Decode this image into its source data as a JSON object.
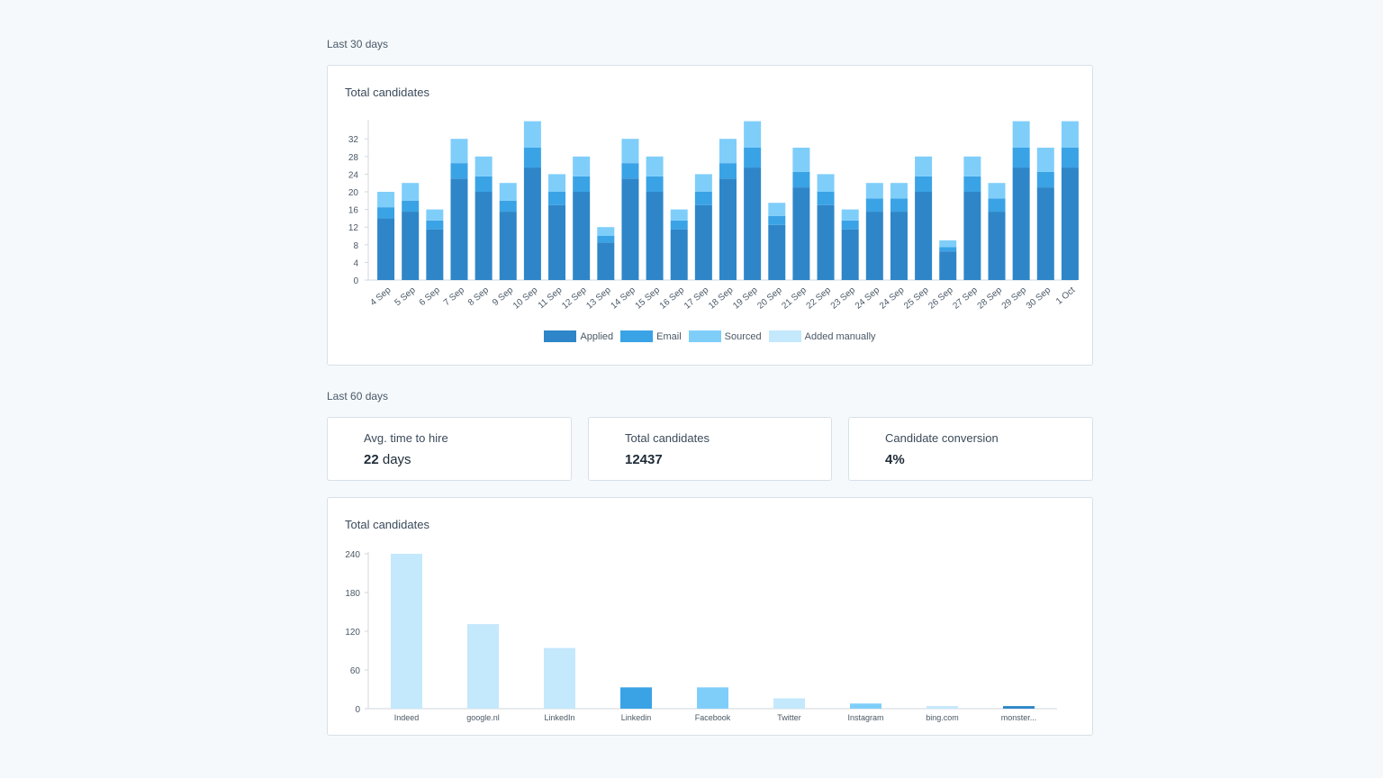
{
  "sections": {
    "last30": "Last 30 days",
    "last60": "Last 60 days"
  },
  "stats": [
    {
      "label": "Avg. time to hire",
      "value": "22",
      "unit": " days"
    },
    {
      "label": "Total candidates",
      "value": "12437",
      "unit": ""
    },
    {
      "label": "Candidate conversion",
      "value": "4%",
      "unit": ""
    }
  ],
  "colors": {
    "applied": "#2e86c8",
    "email": "#3aa3e6",
    "sourced": "#7fcefa",
    "added_manually": "#c4e8fc"
  },
  "chart_data": [
    {
      "type": "bar",
      "stacked": true,
      "title": "Total candidates",
      "categories": [
        "4 Sep",
        "5 Sep",
        "6 Sep",
        "7 Sep",
        "8 Sep",
        "9 Sep",
        "10 Sep",
        "11 Sep",
        "12 Sep",
        "13 Sep",
        "14 Sep",
        "15 Sep",
        "16 Sep",
        "17 Sep",
        "18 Sep",
        "19 Sep",
        "20 Sep",
        "21 Sep",
        "22 Sep",
        "23 Sep",
        "24 Sep",
        "24 Sep",
        "25 Sep",
        "26 Sep",
        "27 Sep",
        "28 Sep",
        "29 Sep",
        "30 Sep",
        "1 Oct"
      ],
      "series": [
        {
          "name": "Applied",
          "values": [
            14,
            15.5,
            11.5,
            23,
            20,
            15.5,
            25.5,
            17,
            20,
            8.5,
            23,
            20,
            11.5,
            17,
            23,
            25.5,
            12.5,
            21,
            17,
            11.5,
            15.5,
            15.5,
            20,
            6.5,
            20,
            15.5,
            25.5,
            21,
            25.5
          ]
        },
        {
          "name": "Email",
          "values": [
            2.5,
            2.5,
            2,
            3.5,
            3.5,
            2.5,
            4.5,
            3,
            3.5,
            1.5,
            3.5,
            3.5,
            2,
            3,
            3.5,
            4.5,
            2,
            3.5,
            3,
            2,
            3,
            3,
            3.5,
            1,
            3.5,
            3,
            4.5,
            3.5,
            4.5
          ]
        },
        {
          "name": "Sourced",
          "values": [
            3.5,
            4,
            2.5,
            5.5,
            4.5,
            4,
            6,
            4,
            4.5,
            2,
            5.5,
            4.5,
            2.5,
            4,
            5.5,
            6,
            3,
            5.5,
            4,
            2.5,
            3.5,
            3.5,
            4.5,
            1.5,
            4.5,
            3.5,
            6,
            5.5,
            6
          ]
        },
        {
          "name": "Added manually",
          "values": [
            0,
            0,
            0,
            0,
            0,
            0,
            0,
            0,
            0,
            0,
            0,
            0,
            0,
            0,
            0,
            0,
            0,
            0,
            0,
            0,
            0,
            0,
            0,
            0,
            0,
            0,
            0,
            0,
            0
          ]
        }
      ],
      "yticks": [
        0,
        4,
        8,
        12,
        16,
        20,
        24,
        28,
        32
      ],
      "ylim": [
        0,
        36
      ],
      "legend": "bottom"
    },
    {
      "type": "bar",
      "title": "Total candidates",
      "categories": [
        "Indeed",
        "google.nl",
        "LinkedIn",
        "Linkedin",
        "Facebook",
        "Twitter",
        "Instagram",
        "bing.com",
        "monster..."
      ],
      "values": [
        240,
        131,
        94,
        33,
        33,
        16,
        8,
        4,
        4
      ],
      "bar_colors": [
        "#c4e8fc",
        "#c4e8fc",
        "#c4e8fc",
        "#3aa3e6",
        "#7fcefa",
        "#c4e8fc",
        "#7fcefa",
        "#c4e8fc",
        "#2e86c8"
      ],
      "yticks": [
        0,
        60,
        120,
        180,
        240
      ],
      "ylim": [
        0,
        240
      ]
    }
  ]
}
